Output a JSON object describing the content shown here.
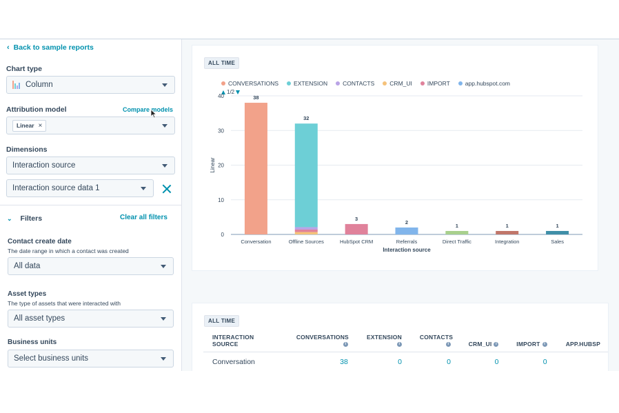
{
  "sidebar": {
    "back_link": "Back to sample reports",
    "chart_type": {
      "label": "Chart type",
      "value": "Column"
    },
    "attribution": {
      "label": "Attribution model",
      "compare_link": "Compare models",
      "tag": "Linear"
    },
    "dimensions": {
      "label": "Dimensions",
      "dim1": "Interaction source",
      "dim2": "Interaction source data 1"
    },
    "filters": {
      "label": "Filters",
      "clear_link": "Clear all filters",
      "contact_create_date": {
        "label": "Contact create date",
        "hint": "The date range in which a contact was created",
        "value": "All data"
      },
      "asset_types": {
        "label": "Asset types",
        "hint": "The type of assets that were interacted with",
        "value": "All asset types"
      },
      "business_units": {
        "label": "Business units",
        "value": "Select business units"
      }
    }
  },
  "chart_card": {
    "badge": "ALL TIME",
    "pager": "1/2",
    "legend": [
      {
        "name": "CONVERSATIONS",
        "color": "#f2a28a"
      },
      {
        "name": "EXTENSION",
        "color": "#6dcfd6"
      },
      {
        "name": "CONTACTS",
        "color": "#b9a3e6"
      },
      {
        "name": "CRM_UI",
        "color": "#f5c27a"
      },
      {
        "name": "IMPORT",
        "color": "#e0829b"
      },
      {
        "name": "app.hubspot.com",
        "color": "#81b5eb"
      }
    ]
  },
  "chart_data": {
    "type": "bar",
    "stacked": true,
    "xlabel": "Interaction source",
    "ylabel": "Linear",
    "ylim": [
      0,
      40
    ],
    "yticks": [
      0,
      10,
      20,
      30,
      40
    ],
    "grid": true,
    "legend_position": "top-left",
    "categories": [
      "Conversation",
      "Offline Sources",
      "HubSpot CRM",
      "Referrals",
      "Direct Traffic",
      "Integration",
      "Sales"
    ],
    "totals": [
      38,
      32,
      3,
      2,
      1,
      1,
      1
    ],
    "bars": [
      [
        {
          "value": 38,
          "color": "#f2a28a"
        }
      ],
      [
        {
          "value": 0.7,
          "color": "#f5c27a"
        },
        {
          "value": 0.7,
          "color": "#e0829b"
        },
        {
          "value": 0.7,
          "color": "#b9a3e6"
        },
        {
          "value": 29.9,
          "color": "#6dcfd6"
        }
      ],
      [
        {
          "value": 3,
          "color": "#e0829b"
        }
      ],
      [
        {
          "value": 2,
          "color": "#81b5eb"
        }
      ],
      [
        {
          "value": 1,
          "color": "#a8d08d"
        }
      ],
      [
        {
          "value": 1,
          "color": "#c0766a"
        }
      ],
      [
        {
          "value": 1,
          "color": "#3f8fa8"
        }
      ]
    ]
  },
  "table_card": {
    "badge": "ALL TIME",
    "headers": [
      "INTERACTION SOURCE",
      "CONVERSATIONS",
      "EXTENSION",
      "CONTACTS",
      "CRM_UI",
      "IMPORT",
      "APP.HUBSP"
    ],
    "rows": [
      [
        "Conversation",
        "38",
        "0",
        "0",
        "0",
        "0",
        ""
      ]
    ]
  }
}
